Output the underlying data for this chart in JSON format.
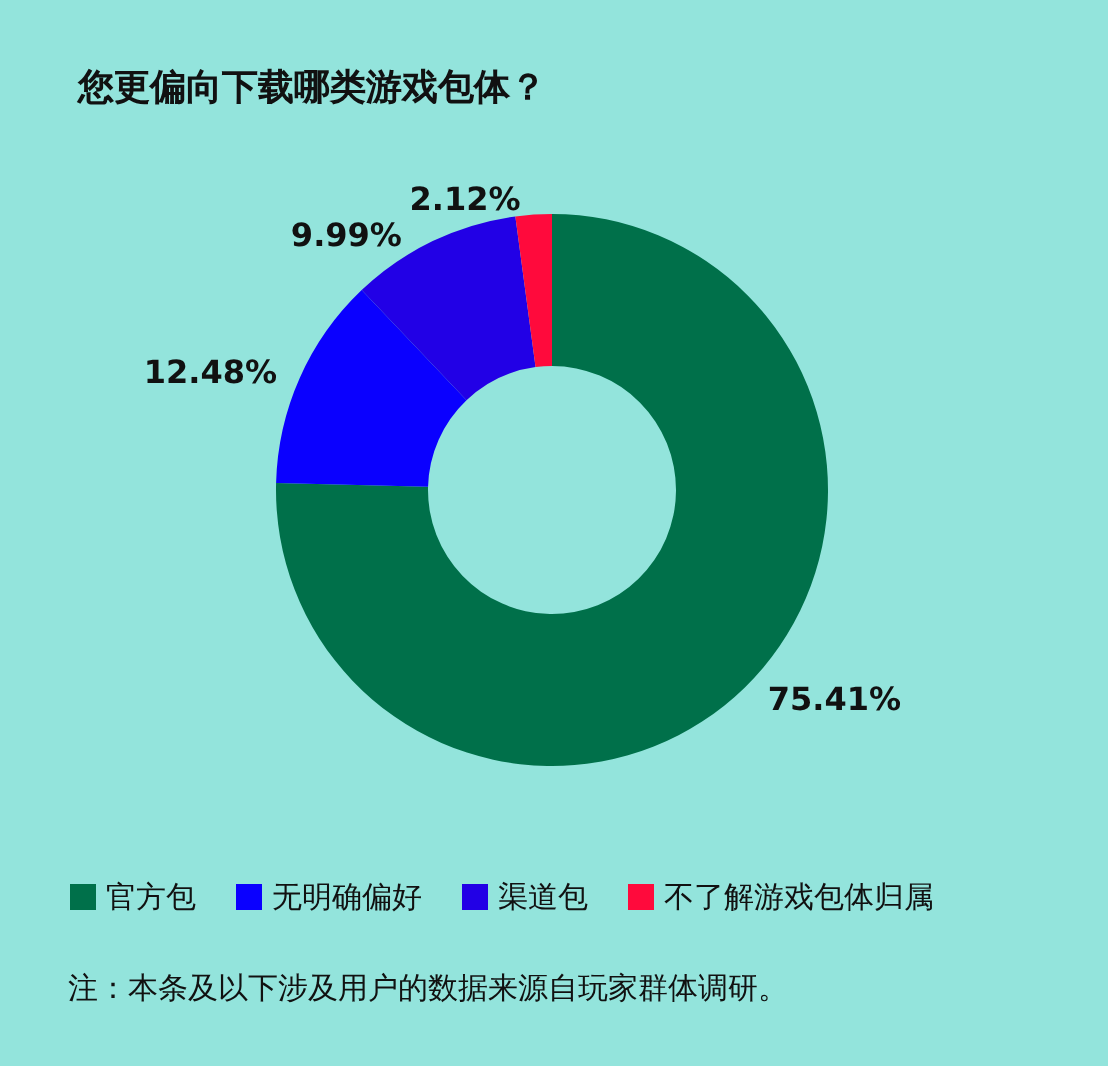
{
  "chart_data": {
    "type": "donut",
    "title": "您更偏向下载哪类游戏包体？",
    "categories": [
      "官方包",
      "无明确偏好",
      "渠道包",
      "不了解游戏包体归属"
    ],
    "values": [
      75.41,
      12.48,
      9.99,
      2.12
    ],
    "value_labels": [
      "75.41%",
      "12.48%",
      "9.99%",
      "2.12%"
    ],
    "colors": [
      "#00704a",
      "#0a00ff",
      "#2200e6",
      "#ff0a3c"
    ],
    "legend": "bottom",
    "annotations": [
      "注：本条及以下涉及用户的数据来源自玩家群体调研。"
    ]
  }
}
